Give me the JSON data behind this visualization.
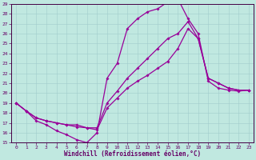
{
  "xlabel": "Windchill (Refroidissement éolien,°C)",
  "xlim_min": -0.5,
  "xlim_max": 23.5,
  "ylim_min": 15,
  "ylim_max": 29,
  "yticks": [
    15,
    16,
    17,
    18,
    19,
    20,
    21,
    22,
    23,
    24,
    25,
    26,
    27,
    28,
    29
  ],
  "xticks": [
    0,
    1,
    2,
    3,
    4,
    5,
    6,
    7,
    8,
    9,
    10,
    11,
    12,
    13,
    14,
    15,
    16,
    17,
    18,
    19,
    20,
    21,
    22,
    23
  ],
  "bg_color": "#c0e8e0",
  "grid_color": "#a0cccc",
  "line_color": "#990099",
  "line1_x": [
    0,
    1,
    2,
    3,
    4,
    5,
    6,
    7,
    8,
    9,
    10,
    11,
    12,
    13,
    14,
    15,
    16,
    17,
    18,
    19,
    20,
    21,
    22,
    23
  ],
  "line1_y": [
    19.0,
    18.2,
    17.2,
    16.8,
    16.2,
    15.8,
    15.3,
    15.0,
    16.0,
    21.5,
    23.0,
    26.5,
    27.5,
    28.2,
    28.5,
    29.2,
    29.5,
    27.5,
    26.0,
    21.2,
    20.5,
    20.3,
    20.2,
    20.3
  ],
  "line2_x": [
    0,
    1,
    2,
    3,
    4,
    5,
    6,
    7,
    8,
    9,
    10,
    11,
    12,
    13,
    14,
    15,
    16,
    17,
    18,
    19,
    20,
    21,
    22,
    23
  ],
  "line2_y": [
    19.0,
    18.2,
    17.5,
    17.2,
    17.0,
    16.8,
    16.8,
    16.5,
    16.3,
    18.5,
    19.5,
    20.5,
    21.2,
    21.8,
    22.5,
    23.2,
    24.5,
    26.5,
    25.5,
    21.5,
    21.0,
    20.5,
    20.3,
    20.3
  ],
  "line3_x": [
    0,
    1,
    2,
    3,
    4,
    5,
    6,
    7,
    8,
    9,
    10,
    11,
    12,
    13,
    14,
    15,
    16,
    17,
    18,
    19,
    20,
    21,
    22,
    23
  ],
  "line3_y": [
    19.0,
    18.2,
    17.5,
    17.2,
    17.0,
    16.8,
    16.6,
    16.5,
    16.5,
    19.0,
    20.2,
    21.5,
    22.5,
    23.5,
    24.5,
    25.5,
    26.0,
    27.2,
    25.5,
    21.5,
    21.0,
    20.5,
    20.3,
    20.3
  ],
  "tick_color": "#660066",
  "tick_fontsize": 4.5,
  "xlabel_fontsize": 5.5,
  "lw": 0.9,
  "marker_size": 1.8
}
